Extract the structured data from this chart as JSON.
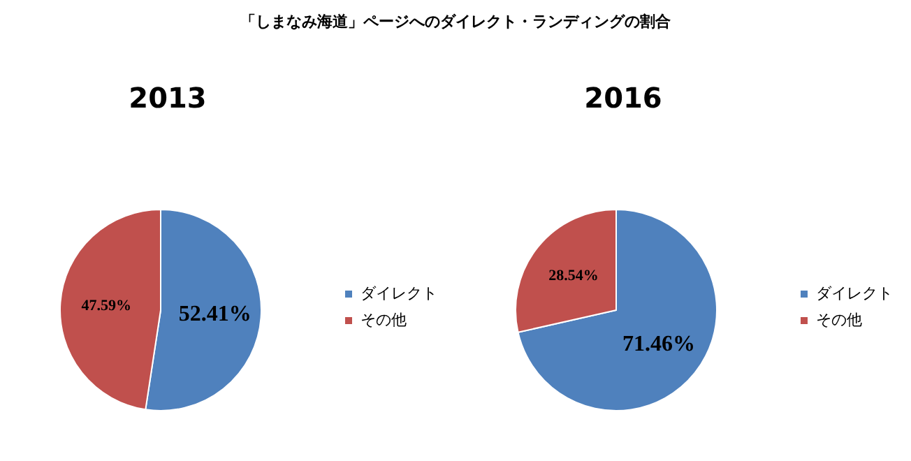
{
  "chart_data": [
    {
      "type": "pie",
      "title": "「しまなみ海道」ページへのダイレクト・ランディングの割合",
      "subtitle": "2013",
      "categories": [
        "ダイレクト",
        "その他"
      ],
      "values": [
        52.41,
        47.59
      ],
      "colors": [
        "#4f81bd",
        "#c0504d"
      ],
      "value_labels": [
        "52.41%",
        "47.59%"
      ],
      "legend": "right"
    },
    {
      "type": "pie",
      "subtitle": "2016",
      "categories": [
        "ダイレクト",
        "その他"
      ],
      "values": [
        71.46,
        28.54
      ],
      "colors": [
        "#4f81bd",
        "#c0504d"
      ],
      "value_labels": [
        "71.46%",
        "28.54%"
      ],
      "legend": "right"
    }
  ]
}
